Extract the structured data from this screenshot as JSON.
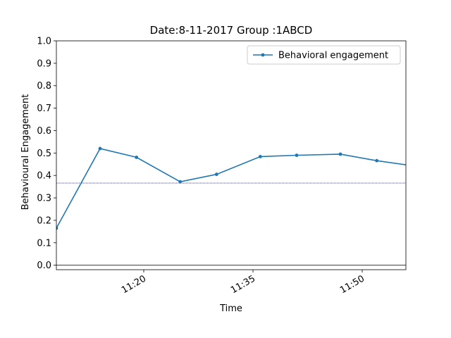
{
  "chart_data": {
    "type": "line",
    "title": "Date:8-11-2017 Group :1ABCD",
    "xlabel": "Time",
    "ylabel": "Behavioural Engagement",
    "x": [
      "11:08",
      "11:14",
      "11:19",
      "11:25",
      "11:30",
      "11:36",
      "11:41",
      "11:47",
      "11:52",
      "11:58"
    ],
    "series": [
      {
        "name": "Behavioral engagement",
        "values": [
          0.165,
          0.52,
          0.481,
          0.372,
          0.405,
          0.484,
          0.49,
          0.495,
          0.466,
          0.438
        ],
        "color": "#1f77b4"
      }
    ],
    "reference_line": {
      "value": 0.366,
      "color": "#000080",
      "style": "dotted"
    },
    "zero_line": {
      "value": 0.0,
      "color": "#000000"
    },
    "xlim": [
      "11:08",
      "11:56"
    ],
    "ylim": [
      -0.02,
      1.0
    ],
    "xticks": [
      "11:20",
      "11:35",
      "11:50"
    ],
    "yticks": [
      "0.0",
      "0.1",
      "0.2",
      "0.3",
      "0.4",
      "0.5",
      "0.6",
      "0.7",
      "0.8",
      "0.9",
      "1.0"
    ],
    "legend": {
      "placement": "top-right"
    },
    "grid": false
  }
}
